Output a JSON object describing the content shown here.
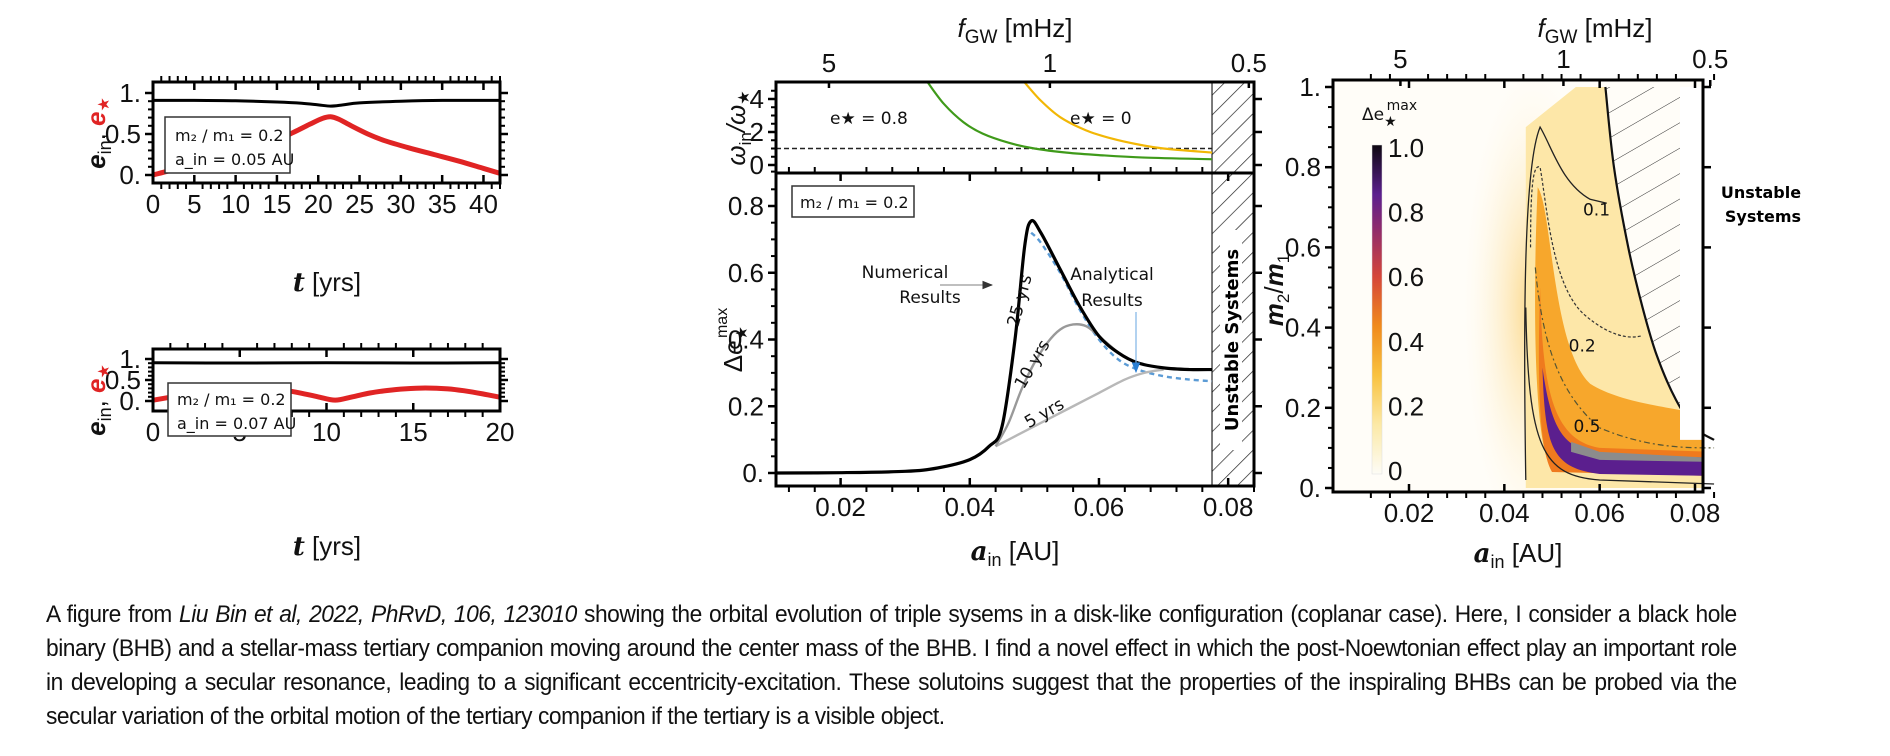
{
  "chart_data": [
    {
      "id": "panel-a-top",
      "type": "line",
      "xlabel": "t [yrs]",
      "ylabel": "e_in, e_★",
      "xlim": [
        0,
        42
      ],
      "ylim": [
        -0.05,
        1.1
      ],
      "xticks": [
        0,
        5,
        10,
        15,
        20,
        25,
        30,
        35,
        40
      ],
      "yticks": [
        {
          "v": 0,
          "label": "0."
        },
        {
          "v": 0.5,
          "label": "0.5"
        },
        {
          "v": 1,
          "label": "1."
        }
      ],
      "annotation": {
        "line1": "m₂ / m₁ = 0.2",
        "line2": "a_in = 0.05 AU"
      },
      "series": [
        {
          "name": "e_in",
          "color": "#000000",
          "x": [
            0,
            5,
            10,
            15,
            18,
            20,
            21.5,
            23,
            25,
            30,
            35,
            42
          ],
          "y": [
            0.91,
            0.91,
            0.905,
            0.89,
            0.875,
            0.855,
            0.84,
            0.855,
            0.88,
            0.9,
            0.91,
            0.91
          ]
        },
        {
          "name": "e_★",
          "color": "#e02424",
          "x": [
            0,
            3,
            6,
            9,
            12,
            15,
            17,
            19,
            20.5,
            21.5,
            22.5,
            24,
            26,
            28,
            31,
            34,
            37,
            40,
            42
          ],
          "y": [
            0.0,
            0.08,
            0.17,
            0.25,
            0.33,
            0.43,
            0.52,
            0.62,
            0.69,
            0.71,
            0.68,
            0.6,
            0.5,
            0.42,
            0.33,
            0.25,
            0.17,
            0.08,
            0.02
          ]
        }
      ]
    },
    {
      "id": "panel-a-bottom",
      "type": "line",
      "xlabel": "t [yrs]",
      "ylabel": "e_in, e_★",
      "xlim": [
        0,
        20
      ],
      "ylim": [
        -0.05,
        1.1
      ],
      "xticks": [
        0,
        5,
        10,
        15,
        20
      ],
      "yticks": [
        {
          "v": 0,
          "label": "0."
        },
        {
          "v": 0.5,
          "label": "0.5"
        },
        {
          "v": 1,
          "label": "1."
        }
      ],
      "annotation": {
        "line1": "m₂ / m₁ = 0.2",
        "line2": "a_in = 0.07 AU"
      },
      "series": [
        {
          "name": "e_in",
          "color": "#000000",
          "x": [
            0,
            5,
            10,
            15,
            20
          ],
          "y": [
            0.91,
            0.905,
            0.91,
            0.905,
            0.91
          ]
        },
        {
          "name": "e_★",
          "color": "#e02424",
          "x": [
            0,
            1,
            2,
            3,
            4,
            5.2,
            6.5,
            7.5,
            8.5,
            9.5,
            10.5,
            11.5,
            12.5,
            13.5,
            14.5,
            15.7,
            17,
            18,
            19,
            20
          ],
          "y": [
            0.02,
            0.09,
            0.16,
            0.22,
            0.27,
            0.31,
            0.3,
            0.26,
            0.19,
            0.1,
            0.02,
            0.1,
            0.19,
            0.25,
            0.29,
            0.31,
            0.29,
            0.24,
            0.17,
            0.09
          ]
        }
      ]
    },
    {
      "id": "panel-b-top",
      "type": "line",
      "top_axis": {
        "label": "f_GW [mHz]",
        "ticks": [
          {
            "a": 0.0182,
            "label": "5"
          },
          {
            "a": 0.0524,
            "label": "1"
          },
          {
            "a": 0.0832,
            "label": "0.5"
          }
        ]
      },
      "ylabel": "ω_in/ω_★",
      "xlim": [
        0.01,
        0.084
      ],
      "ylim": [
        -0.5,
        5
      ],
      "yticks": [
        0,
        2,
        4
      ],
      "reference_line": {
        "y": 1,
        "style": "dashed"
      },
      "unstable_from": 0.0775,
      "series": [
        {
          "name": "e_★ = 0.8",
          "color": "#3f9a1a",
          "x": [
            0.0335,
            0.036,
            0.039,
            0.042,
            0.046,
            0.05,
            0.055,
            0.06,
            0.067,
            0.0775
          ],
          "y": [
            5,
            3.7,
            2.6,
            1.9,
            1.35,
            1.0,
            0.75,
            0.6,
            0.45,
            0.35
          ]
        },
        {
          "name": "e_★ = 0",
          "color": "#f2b705",
          "x": [
            0.0485,
            0.051,
            0.054,
            0.058,
            0.062,
            0.066,
            0.07,
            0.0775
          ],
          "y": [
            5,
            3.9,
            2.9,
            2.1,
            1.6,
            1.25,
            1.0,
            0.75
          ]
        }
      ],
      "labels": [
        {
          "text": "e★ = 0.8",
          "color": "#2e8b12"
        },
        {
          "text": "e★ = 0",
          "color": "#e8c400"
        }
      ]
    },
    {
      "id": "panel-b-bottom",
      "type": "line",
      "xlabel": "a_in [AU]",
      "ylabel": "Δe_★^max",
      "xlim": [
        0.01,
        0.084
      ],
      "ylim": [
        -0.03,
        0.9
      ],
      "xticks": [
        0.02,
        0.04,
        0.06,
        0.08
      ],
      "yticks": [
        {
          "v": 0,
          "label": "0."
        },
        {
          "v": 0.2,
          "label": "0.2"
        },
        {
          "v": 0.4,
          "label": "0.4"
        },
        {
          "v": 0.6,
          "label": "0.6"
        },
        {
          "v": 0.8,
          "label": "0.8"
        }
      ],
      "annotation": "m₂ / m₁ = 0.2",
      "unstable_from": 0.0775,
      "unstable_label": "Unstable Systems",
      "series": [
        {
          "name": "Numerical Results (25 yrs)",
          "color": "#000000",
          "x": [
            0.01,
            0.02,
            0.03,
            0.035,
            0.04,
            0.043,
            0.045,
            0.047,
            0.0485,
            0.0495,
            0.051,
            0.054,
            0.057,
            0.06,
            0.063,
            0.066,
            0.07,
            0.074,
            0.0775
          ],
          "y": [
            0.0,
            0.001,
            0.005,
            0.015,
            0.04,
            0.08,
            0.14,
            0.4,
            0.68,
            0.755,
            0.72,
            0.61,
            0.5,
            0.41,
            0.36,
            0.33,
            0.315,
            0.31,
            0.31
          ]
        },
        {
          "name": "10 yrs",
          "color": "#999999",
          "x": [
            0.044,
            0.046,
            0.048,
            0.05,
            0.052,
            0.054,
            0.056,
            0.058,
            0.06,
            0.063
          ],
          "y": [
            0.08,
            0.15,
            0.25,
            0.33,
            0.39,
            0.43,
            0.445,
            0.44,
            0.41,
            0.36
          ]
        },
        {
          "name": "5 yrs",
          "color": "#b8b8b8",
          "x": [
            0.044,
            0.048,
            0.052,
            0.056,
            0.06,
            0.064,
            0.067,
            0.07
          ],
          "y": [
            0.08,
            0.12,
            0.16,
            0.2,
            0.24,
            0.28,
            0.3,
            0.31
          ]
        },
        {
          "name": "Analytical Results",
          "color": "#5b9bd5",
          "dashed": true,
          "x": [
            0.0495,
            0.051,
            0.054,
            0.057,
            0.06,
            0.063,
            0.066,
            0.07,
            0.074,
            0.0775
          ],
          "y": [
            0.72,
            0.69,
            0.6,
            0.49,
            0.4,
            0.34,
            0.31,
            0.29,
            0.28,
            0.275
          ]
        }
      ],
      "text_labels": {
        "numerical": [
          "Numerical",
          "Results"
        ],
        "analytical": [
          "Analytical",
          "Results"
        ],
        "t25": "25 yrs",
        "t10": "10 yrs",
        "t5": "5 yrs"
      }
    },
    {
      "id": "panel-c",
      "type": "heatmap",
      "top_axis": {
        "label": "f_GW [mHz]",
        "ticks": [
          {
            "a": 0.0182,
            "label": "5"
          },
          {
            "a": 0.0524,
            "label": "1"
          },
          {
            "a": 0.0832,
            "label": "0.5"
          }
        ]
      },
      "xlabel": "a_in [AU]",
      "ylabel": "m₂/m₁",
      "xlim": [
        0.01,
        0.084
      ],
      "ylim": [
        -0.01,
        1.01
      ],
      "xticks": [
        0.02,
        0.04,
        0.06,
        0.08
      ],
      "yticks": [
        {
          "v": 0,
          "label": "0."
        },
        {
          "v": 0.2,
          "label": "0.2"
        },
        {
          "v": 0.4,
          "label": "0.4"
        },
        {
          "v": 0.6,
          "label": "0.6"
        },
        {
          "v": 0.8,
          "label": "0.8"
        },
        {
          "v": 1,
          "label": "1."
        }
      ],
      "colorbar": {
        "label": "Δe★max",
        "min": 0,
        "max": 1,
        "ticks": [
          "0",
          "0.2",
          "0.4",
          "0.6",
          "0.8",
          "1.0"
        ]
      },
      "contours": [
        {
          "level": "0.1",
          "label": "0.1"
        },
        {
          "level": "0.2",
          "label": "0.2"
        },
        {
          "level": "0.5",
          "label": "0.5"
        }
      ],
      "unstable_label": [
        "Unstable",
        "Systems"
      ],
      "unstable_boundary": {
        "x": [
          0.0612,
          0.063,
          0.066,
          0.069,
          0.072,
          0.076,
          0.08,
          0.084
        ],
        "y": [
          1.0,
          0.8,
          0.6,
          0.45,
          0.33,
          0.22,
          0.15,
          0.12
        ]
      }
    }
  ],
  "caption": {
    "prefix": "A figure from ",
    "citation": "Liu Bin et al, 2022, PhRvD, 106, 123010",
    "body": " showing the orbital evolution of triple sysems in a disk-like configuration (coplanar case). Here, I consider a black hole binary (BHB) and a stellar-mass tertiary companion moving around the center mass of the BHB. I find a novel effect in which the post-Noewtonian effect play an important role in developing a secular resonance, leading to a significant eccentricity-excitation. These solutoins suggest that the properties of the inspiraling BHBs can be probed via the secular variation of the orbital motion of the tertiary companion if the tertiary is a visible object."
  }
}
